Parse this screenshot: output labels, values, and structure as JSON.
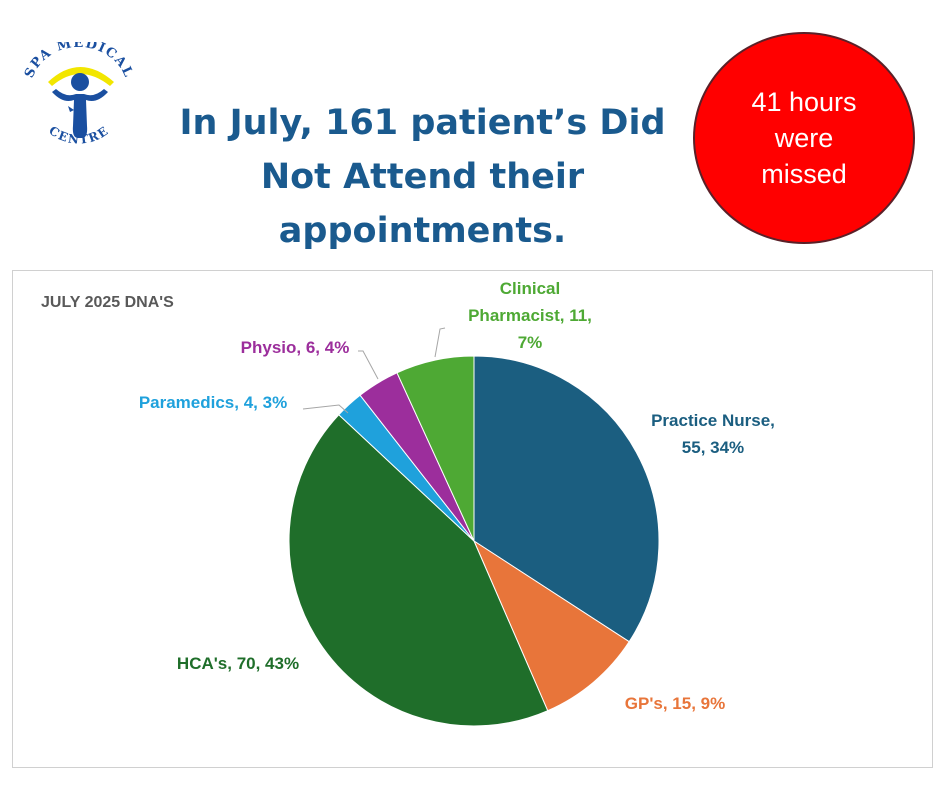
{
  "logo": {
    "name_top": "SPA MEDICAL",
    "name_bottom": "CENTRE",
    "colors": {
      "text": "#1a4fa0",
      "arc": "#f2e600",
      "figure": "#1a4fa0"
    }
  },
  "headline": {
    "line1": "In July, 161 patient’s Did",
    "line2": "Not Attend their",
    "line3": "appointments."
  },
  "hours_badge": {
    "line1": "41 hours",
    "line2": "were",
    "line3": "missed",
    "color": "#ff0000"
  },
  "chart_data": {
    "type": "pie",
    "title": "JULY 2025 DNA'S",
    "total": 161,
    "start": "12 o'clock",
    "direction": "clockwise",
    "slices": [
      {
        "name": "Practice Nurse",
        "value": 55,
        "percent": 34,
        "color": "#1b5e80",
        "label_lines": [
          "Practice Nurse,",
          "55, 34%"
        ]
      },
      {
        "name": "GP's",
        "value": 15,
        "percent": 9,
        "color": "#e8753a",
        "label_lines": [
          "GP's, 15, 9%"
        ]
      },
      {
        "name": "HCA's",
        "value": 70,
        "percent": 43,
        "color": "#1f6e2a",
        "label_lines": [
          "HCA's, 70, 43%"
        ]
      },
      {
        "name": "Paramedics",
        "value": 4,
        "percent": 3,
        "color": "#1fa1dc",
        "label_lines": [
          "Paramedics, 4, 3%"
        ]
      },
      {
        "name": "Physio",
        "value": 6,
        "percent": 4,
        "color": "#9c2e9c",
        "label_lines": [
          "Physio, 6, 4%"
        ]
      },
      {
        "name": "Clinical Pharmacist",
        "value": 11,
        "percent": 7,
        "color": "#4ea934",
        "label_lines": [
          "Clinical",
          "Pharmacist, 11,",
          "7%"
        ]
      }
    ]
  }
}
